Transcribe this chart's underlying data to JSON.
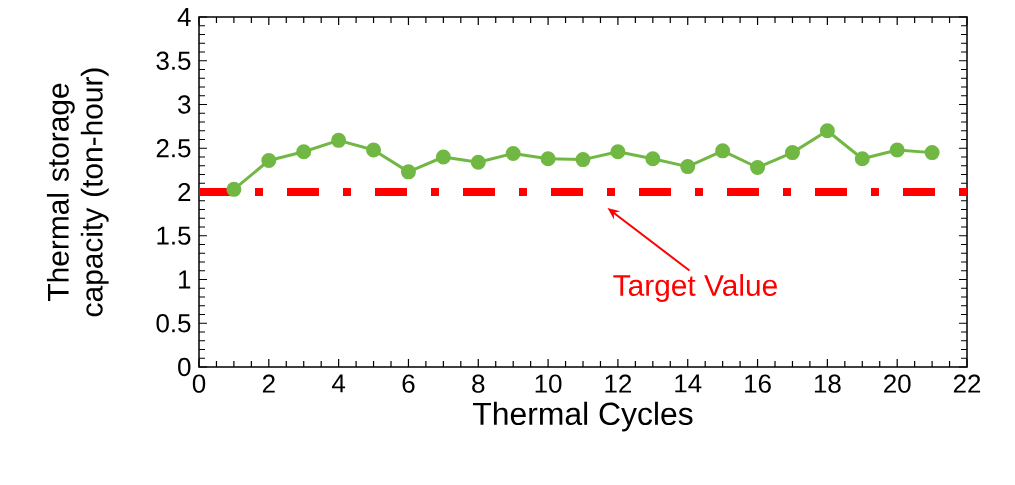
{
  "chart_data": {
    "type": "line",
    "xlabel": "Thermal Cycles",
    "ylabel": "Thermal storage capacity (ton-hour)",
    "x": [
      1,
      2,
      3,
      4,
      5,
      6,
      7,
      8,
      9,
      10,
      11,
      12,
      13,
      14,
      15,
      16,
      17,
      18,
      19,
      20,
      21
    ],
    "series": [
      {
        "color": "#70b843",
        "values": [
          2.03,
          2.36,
          2.46,
          2.59,
          2.48,
          2.23,
          2.4,
          2.34,
          2.44,
          2.38,
          2.37,
          2.46,
          2.38,
          2.29,
          2.47,
          2.28,
          2.45,
          2.7,
          2.38,
          2.48,
          2.45
        ]
      }
    ],
    "marker": "circle",
    "line_style": "solid",
    "grid": false,
    "xlim": [
      0,
      22
    ],
    "xticks": [
      0,
      2,
      4,
      6,
      8,
      10,
      12,
      14,
      16,
      18,
      20,
      22
    ],
    "ylim": [
      0,
      4
    ],
    "yticks": [
      0,
      0.5,
      1,
      1.5,
      2,
      2.5,
      3,
      3.5,
      4
    ],
    "ref_lines": [
      {
        "axis": "y",
        "value": 2,
        "color": "#ff0000",
        "line_style": "dashdot"
      }
    ],
    "annotations": [
      {
        "text": "Target Value",
        "x": 11.7,
        "y": 2
      }
    ]
  }
}
